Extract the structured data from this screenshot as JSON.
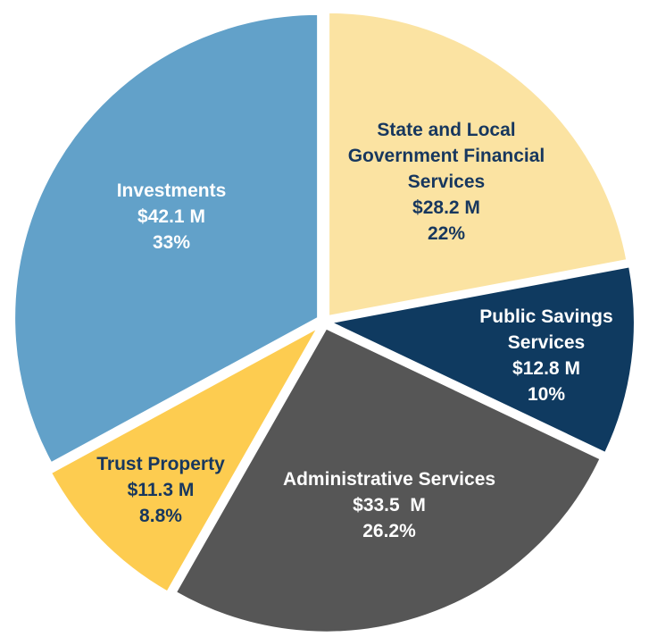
{
  "chart_data": {
    "type": "pie",
    "title": "",
    "slices": [
      {
        "name": "State and Local Government Financial Services",
        "label_lines": [
          "State and Local",
          "Government Financial",
          "Services"
        ],
        "value_text": "$28.2 M",
        "pct_text": "22%",
        "value": 28.2,
        "percent": 22,
        "color": "#fbe3a2",
        "text_color": "#17375e"
      },
      {
        "name": "Public Savings Services",
        "label_lines": [
          "Public Savings",
          "Services"
        ],
        "value_text": "$12.8 M",
        "pct_text": "10%",
        "value": 12.8,
        "percent": 10,
        "color": "#0f3a60",
        "text_color": "#ffffff"
      },
      {
        "name": "Administrative Services",
        "label_lines": [
          "Administrative Services"
        ],
        "value_text": "$33.5  M",
        "pct_text": "26.2%",
        "value": 33.5,
        "percent": 26.2,
        "color": "#565656",
        "text_color": "#ffffff"
      },
      {
        "name": "Trust Property",
        "label_lines": [
          "Trust Property"
        ],
        "value_text": "$11.3 M",
        "pct_text": "8.8%",
        "value": 11.3,
        "percent": 8.8,
        "color": "#fdcc50",
        "text_color": "#17375e"
      },
      {
        "name": "Investments",
        "label_lines": [
          "Investments"
        ],
        "value_text": "$42.1 M",
        "pct_text": "33%",
        "value": 42.1,
        "percent": 33,
        "color": "#62a1c9",
        "text_color": "#ffffff"
      }
    ],
    "start": "12 o'clock",
    "direction": "clockwise",
    "exploded": true
  }
}
